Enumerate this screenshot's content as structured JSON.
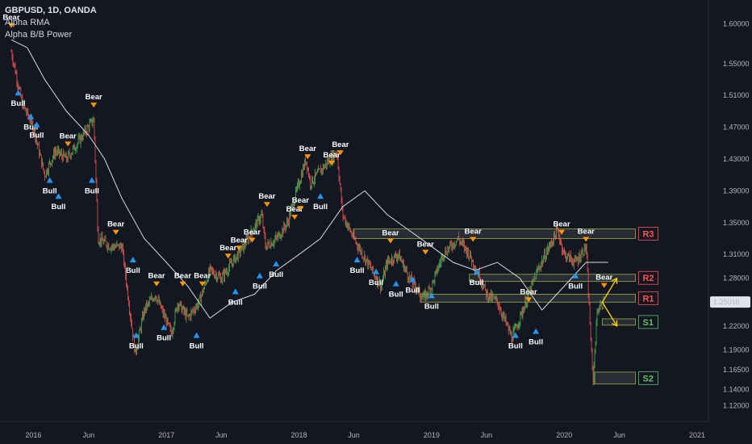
{
  "header": {
    "symbol": "GBPUSD, 1D, OANDA",
    "indicator_1": "Alpha RMA",
    "indicator_2": "Alpha B/B Power"
  },
  "price_label": "1.25016",
  "colors": {
    "background": "#131722",
    "bull_candle": "#4caf50",
    "bear_candle": "#ef5350",
    "rma_line": "#d9d9d9",
    "bear_marker": "#ff9800",
    "bull_marker": "#2196f3",
    "zone_border": "#a5ac3c",
    "resistance_text": "#ff5252",
    "support_text": "#66bb6a",
    "arrow": "#ffd600",
    "price_badge": "#e0e3eb"
  },
  "chart_data": {
    "type": "candlestick",
    "title": "GBPUSD, 1D, OANDA",
    "y_ticks": [
      "1.60000",
      "1.55000",
      "1.51000",
      "1.47000",
      "1.43000",
      "1.39000",
      "1.35000",
      "1.31000",
      "1.28000",
      "1.25016",
      "1.22000",
      "1.19000",
      "1.16500",
      "1.14000",
      "1.12000"
    ],
    "x_ticks": [
      "2016",
      "Jun",
      "2017",
      "Jun",
      "2018",
      "Jun",
      "2019",
      "Jun",
      "2020",
      "Jun",
      "2021"
    ],
    "ylim": [
      1.1,
      1.63
    ],
    "close_path": [
      {
        "x": "2015-11-01",
        "y": 1.565
      },
      {
        "x": "2015-12-01",
        "y": 1.5
      },
      {
        "x": "2016-01-01",
        "y": 1.47
      },
      {
        "x": "2016-02-01",
        "y": 1.41
      },
      {
        "x": "2016-03-01",
        "y": 1.44
      },
      {
        "x": "2016-04-01",
        "y": 1.43
      },
      {
        "x": "2016-05-01",
        "y": 1.45
      },
      {
        "x": "2016-06-15",
        "y": 1.48
      },
      {
        "x": "2016-06-27",
        "y": 1.33
      },
      {
        "x": "2016-08-01",
        "y": 1.32
      },
      {
        "x": "2016-09-01",
        "y": 1.32
      },
      {
        "x": "2016-10-07",
        "y": 1.185
      },
      {
        "x": "2016-11-01",
        "y": 1.24
      },
      {
        "x": "2016-12-01",
        "y": 1.26
      },
      {
        "x": "2017-01-15",
        "y": 1.21
      },
      {
        "x": "2017-02-01",
        "y": 1.25
      },
      {
        "x": "2017-03-01",
        "y": 1.23
      },
      {
        "x": "2017-04-01",
        "y": 1.25
      },
      {
        "x": "2017-05-01",
        "y": 1.29
      },
      {
        "x": "2017-06-01",
        "y": 1.28
      },
      {
        "x": "2017-07-01",
        "y": 1.3
      },
      {
        "x": "2017-08-01",
        "y": 1.32
      },
      {
        "x": "2017-09-20",
        "y": 1.36
      },
      {
        "x": "2017-10-01",
        "y": 1.32
      },
      {
        "x": "2017-11-01",
        "y": 1.33
      },
      {
        "x": "2017-12-01",
        "y": 1.35
      },
      {
        "x": "2018-01-20",
        "y": 1.43
      },
      {
        "x": "2018-02-01",
        "y": 1.4
      },
      {
        "x": "2018-04-15",
        "y": 1.44
      },
      {
        "x": "2018-05-01",
        "y": 1.36
      },
      {
        "x": "2018-06-01",
        "y": 1.33
      },
      {
        "x": "2018-08-15",
        "y": 1.27
      },
      {
        "x": "2018-09-01",
        "y": 1.3
      },
      {
        "x": "2018-10-01",
        "y": 1.31
      },
      {
        "x": "2018-11-01",
        "y": 1.28
      },
      {
        "x": "2018-12-10",
        "y": 1.255
      },
      {
        "x": "2019-01-01",
        "y": 1.27
      },
      {
        "x": "2019-02-01",
        "y": 1.31
      },
      {
        "x": "2019-03-15",
        "y": 1.33
      },
      {
        "x": "2019-04-15",
        "y": 1.31
      },
      {
        "x": "2019-05-15",
        "y": 1.28
      },
      {
        "x": "2019-06-01",
        "y": 1.26
      },
      {
        "x": "2019-07-01",
        "y": 1.25
      },
      {
        "x": "2019-08-10",
        "y": 1.205
      },
      {
        "x": "2019-09-01",
        "y": 1.23
      },
      {
        "x": "2019-10-20",
        "y": 1.29
      },
      {
        "x": "2019-12-13",
        "y": 1.34
      },
      {
        "x": "2020-01-01",
        "y": 1.31
      },
      {
        "x": "2020-02-01",
        "y": 1.3
      },
      {
        "x": "2020-03-01",
        "y": 1.32
      },
      {
        "x": "2020-03-20",
        "y": 1.15
      },
      {
        "x": "2020-04-01",
        "y": 1.24
      },
      {
        "x": "2020-04-20",
        "y": 1.25
      }
    ],
    "rma_path": [
      {
        "x": "2015-11-01",
        "y": 1.58
      },
      {
        "x": "2015-12-15",
        "y": 1.57
      },
      {
        "x": "2016-02-01",
        "y": 1.53
      },
      {
        "x": "2016-04-01",
        "y": 1.49
      },
      {
        "x": "2016-06-01",
        "y": 1.46
      },
      {
        "x": "2016-07-15",
        "y": 1.43
      },
      {
        "x": "2016-09-01",
        "y": 1.38
      },
      {
        "x": "2016-11-01",
        "y": 1.33
      },
      {
        "x": "2017-01-01",
        "y": 1.3
      },
      {
        "x": "2017-03-01",
        "y": 1.27
      },
      {
        "x": "2017-05-01",
        "y": 1.23
      },
      {
        "x": "2017-07-01",
        "y": 1.25
      },
      {
        "x": "2017-09-01",
        "y": 1.26
      },
      {
        "x": "2017-11-01",
        "y": 1.29
      },
      {
        "x": "2018-01-01",
        "y": 1.31
      },
      {
        "x": "2018-03-01",
        "y": 1.33
      },
      {
        "x": "2018-05-01",
        "y": 1.37
      },
      {
        "x": "2018-07-01",
        "y": 1.39
      },
      {
        "x": "2018-09-01",
        "y": 1.36
      },
      {
        "x": "2018-11-01",
        "y": 1.34
      },
      {
        "x": "2019-01-01",
        "y": 1.32
      },
      {
        "x": "2019-03-01",
        "y": 1.3
      },
      {
        "x": "2019-05-01",
        "y": 1.29
      },
      {
        "x": "2019-07-01",
        "y": 1.3
      },
      {
        "x": "2019-09-01",
        "y": 1.28
      },
      {
        "x": "2019-11-01",
        "y": 1.24
      },
      {
        "x": "2020-01-01",
        "y": 1.27
      },
      {
        "x": "2020-03-01",
        "y": 1.3
      },
      {
        "x": "2020-05-01",
        "y": 1.3
      }
    ],
    "signals": [
      {
        "type": "bear",
        "x": "2015-11-01",
        "y": 1.605
      },
      {
        "type": "bull",
        "x": "2015-11-20",
        "y": 1.51
      },
      {
        "type": "bull",
        "x": "2015-12-25",
        "y": 1.48
      },
      {
        "type": "bull",
        "x": "2016-01-10",
        "y": 1.47
      },
      {
        "type": "bull",
        "x": "2016-02-15",
        "y": 1.4
      },
      {
        "type": "bear",
        "x": "2016-04-05",
        "y": 1.456
      },
      {
        "type": "bull",
        "x": "2016-03-10",
        "y": 1.38
      },
      {
        "type": "bear",
        "x": "2016-06-15",
        "y": 1.505
      },
      {
        "type": "bull",
        "x": "2016-06-10",
        "y": 1.4
      },
      {
        "type": "bear",
        "x": "2016-08-15",
        "y": 1.345
      },
      {
        "type": "bull",
        "x": "2016-10-01",
        "y": 1.3
      },
      {
        "type": "bull",
        "x": "2016-10-10",
        "y": 1.205
      },
      {
        "type": "bear",
        "x": "2016-12-05",
        "y": 1.28
      },
      {
        "type": "bull",
        "x": "2016-12-25",
        "y": 1.215
      },
      {
        "type": "bear",
        "x": "2017-02-15",
        "y": 1.28
      },
      {
        "type": "bear",
        "x": "2017-04-10",
        "y": 1.28
      },
      {
        "type": "bull",
        "x": "2017-03-25",
        "y": 1.205
      },
      {
        "type": "bear",
        "x": "2017-06-20",
        "y": 1.315
      },
      {
        "type": "bear",
        "x": "2017-07-20",
        "y": 1.325
      },
      {
        "type": "bear",
        "x": "2017-08-25",
        "y": 1.335
      },
      {
        "type": "bull",
        "x": "2017-07-10",
        "y": 1.26
      },
      {
        "type": "bear",
        "x": "2017-10-05",
        "y": 1.38
      },
      {
        "type": "bull",
        "x": "2017-09-15",
        "y": 1.28
      },
      {
        "type": "bull",
        "x": "2017-10-30",
        "y": 1.295
      },
      {
        "type": "bear",
        "x": "2017-12-20",
        "y": 1.364
      },
      {
        "type": "bear",
        "x": "2018-01-05",
        "y": 1.375
      },
      {
        "type": "bear",
        "x": "2018-01-25",
        "y": 1.44
      },
      {
        "type": "bull",
        "x": "2018-03-01",
        "y": 1.38
      },
      {
        "type": "bear",
        "x": "2018-04-01",
        "y": 1.432
      },
      {
        "type": "bear",
        "x": "2018-04-25",
        "y": 1.445
      },
      {
        "type": "bull",
        "x": "2018-06-10",
        "y": 1.3
      },
      {
        "type": "bull",
        "x": "2018-08-01",
        "y": 1.285
      },
      {
        "type": "bear",
        "x": "2018-09-10",
        "y": 1.334
      },
      {
        "type": "bull",
        "x": "2018-09-25",
        "y": 1.27
      },
      {
        "type": "bull",
        "x": "2018-11-10",
        "y": 1.275
      },
      {
        "type": "bear",
        "x": "2018-12-15",
        "y": 1.32
      },
      {
        "type": "bull",
        "x": "2019-01-01",
        "y": 1.255
      },
      {
        "type": "bear",
        "x": "2019-04-25",
        "y": 1.336
      },
      {
        "type": "bull",
        "x": "2019-05-05",
        "y": 1.285
      },
      {
        "type": "bear",
        "x": "2019-09-25",
        "y": 1.26
      },
      {
        "type": "bull",
        "x": "2019-08-20",
        "y": 1.205
      },
      {
        "type": "bull",
        "x": "2019-10-15",
        "y": 1.21
      },
      {
        "type": "bear",
        "x": "2019-12-25",
        "y": 1.345
      },
      {
        "type": "bull",
        "x": "2020-02-01",
        "y": 1.28
      },
      {
        "type": "bear",
        "x": "2020-03-01",
        "y": 1.336
      },
      {
        "type": "bear",
        "x": "2020-04-20",
        "y": 1.278
      }
    ],
    "zones": [
      {
        "label": "R3",
        "y_top": 1.342,
        "y_bottom": 1.33,
        "x_start": "2018-06-01",
        "x_end": "2020-07-15"
      },
      {
        "label": "R2",
        "y_top": 1.285,
        "y_bottom": 1.276,
        "x_start": "2019-04-15",
        "x_end": "2020-07-15"
      },
      {
        "label": "R1",
        "y_top": 1.26,
        "y_bottom": 1.25,
        "x_start": "2018-12-01",
        "x_end": "2020-07-15"
      },
      {
        "label": "S1",
        "y_top": 1.229,
        "y_bottom": 1.221,
        "x_start": "2020-04-15",
        "x_end": "2020-07-15"
      },
      {
        "label": "S2",
        "y_top": 1.162,
        "y_bottom": 1.147,
        "x_start": "2020-03-25",
        "x_end": "2020-07-15"
      }
    ],
    "projections": [
      {
        "x_start": "2020-04-15",
        "y_start": 1.25,
        "x_end": "2020-05-25",
        "y_end": 1.28
      },
      {
        "x_start": "2020-04-15",
        "y_start": 1.25,
        "x_end": "2020-05-25",
        "y_end": 1.22
      }
    ],
    "signal_text": {
      "bull": "Bull",
      "bear": "Bear"
    }
  }
}
